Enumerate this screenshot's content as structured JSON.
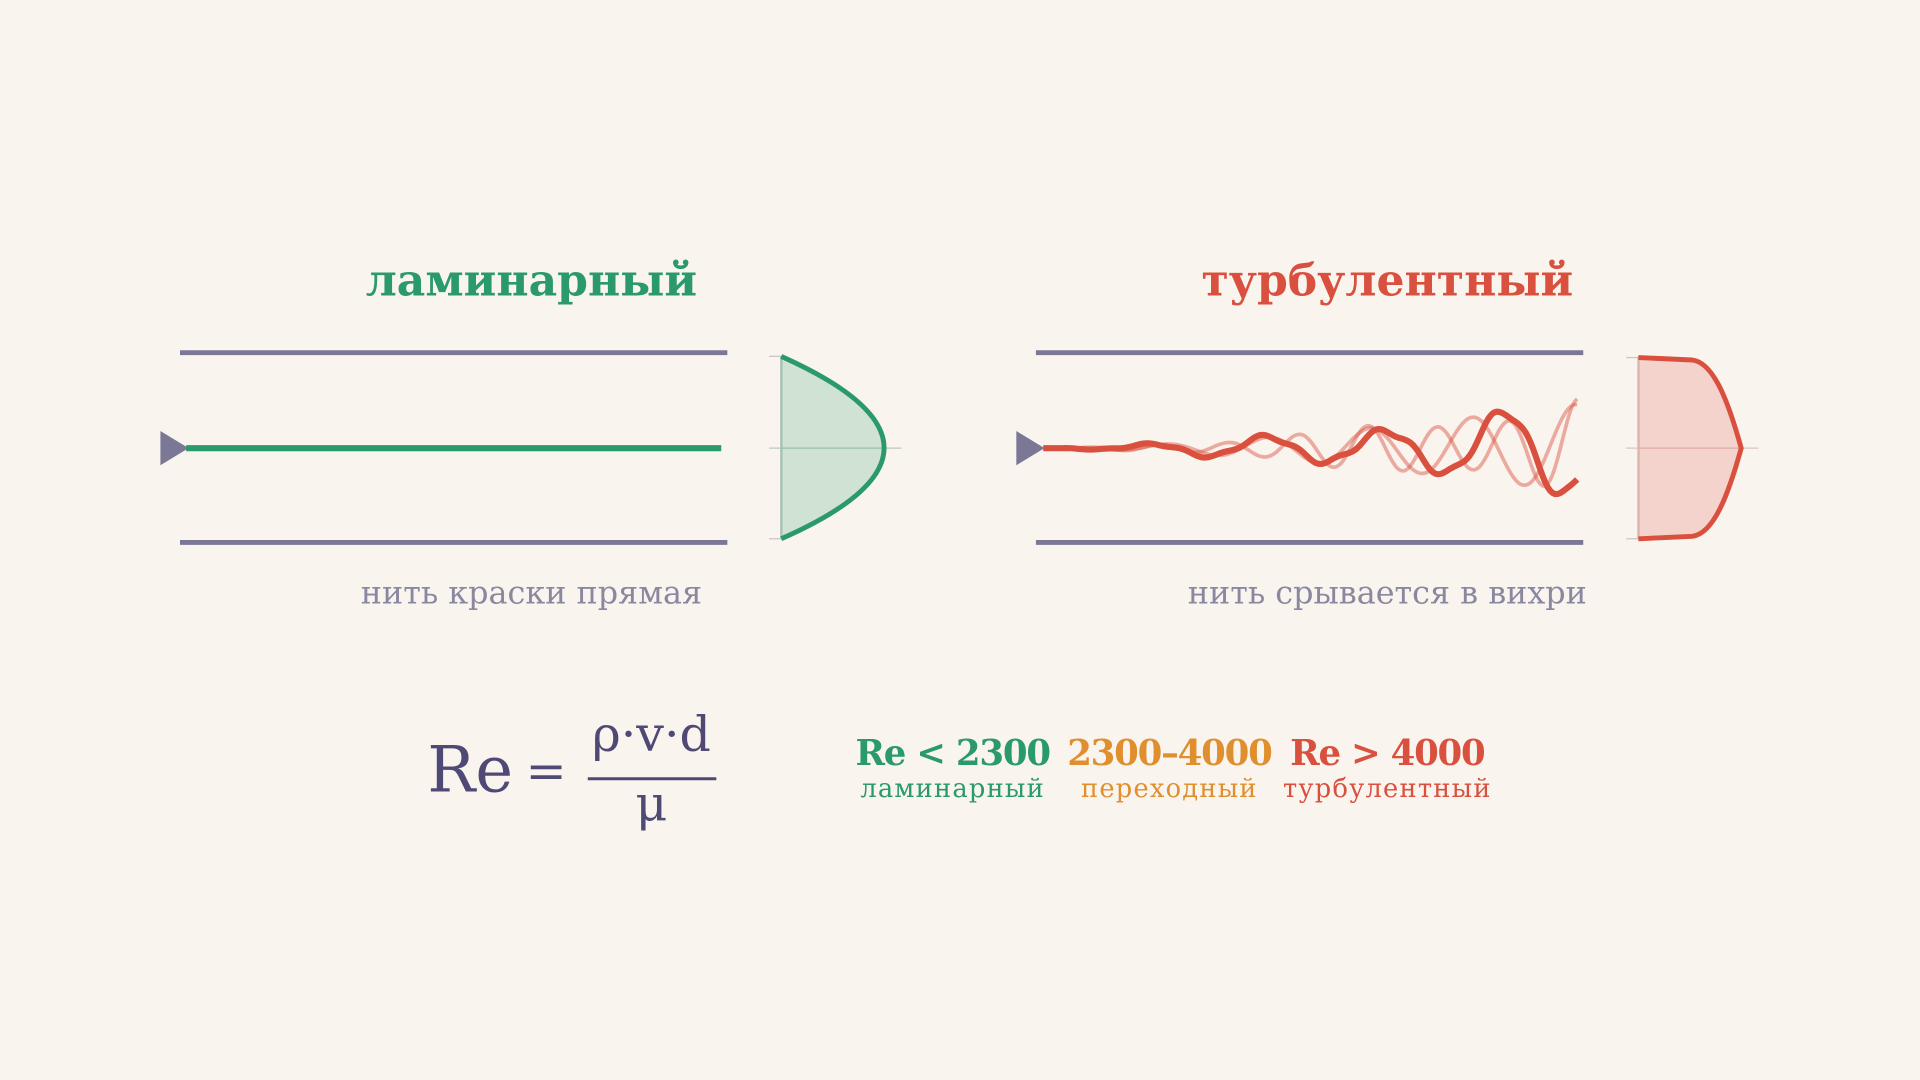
{
  "laminar": {
    "title": "ламинарный",
    "caption": "нить краски прямая"
  },
  "turbulent": {
    "title": "турбулентный",
    "caption": "нить срывается в вихри"
  },
  "formula": {
    "lhs": "Re",
    "equals": "=",
    "numerator": "ρ·v·d",
    "denominator": "μ"
  },
  "ranges": [
    {
      "label": "Re < 2300",
      "regime": "ламинарный"
    },
    {
      "label": "2300–4000",
      "regime": "переходный"
    },
    {
      "label": "Re > 4000",
      "regime": "турбулентный"
    }
  ]
}
